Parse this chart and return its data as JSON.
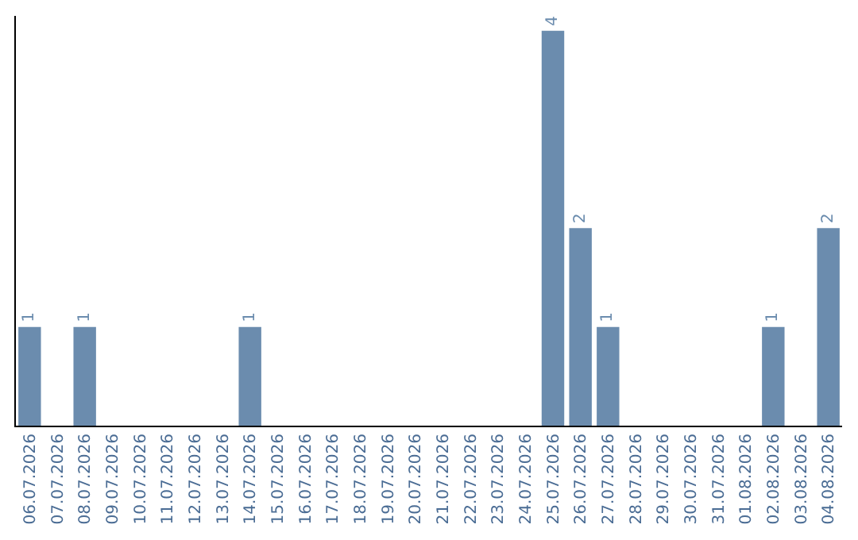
{
  "chart_data": {
    "type": "bar",
    "categories": [
      "06.07.2026",
      "07.07.2026",
      "08.07.2026",
      "09.07.2026",
      "10.07.2026",
      "11.07.2026",
      "12.07.2026",
      "13.07.2026",
      "14.07.2026",
      "15.07.2026",
      "16.07.2026",
      "17.07.2026",
      "18.07.2026",
      "19.07.2026",
      "20.07.2026",
      "21.07.2026",
      "22.07.2026",
      "23.07.2026",
      "24.07.2026",
      "25.07.2026",
      "26.07.2026",
      "27.07.2026",
      "28.07.2026",
      "29.07.2026",
      "30.07.2026",
      "31.07.2026",
      "01.08.2026",
      "02.08.2026",
      "03.08.2026",
      "04.08.2026"
    ],
    "values": [
      1,
      0,
      1,
      0,
      0,
      0,
      0,
      0,
      1,
      0,
      0,
      0,
      0,
      0,
      0,
      0,
      0,
      0,
      0,
      4,
      2,
      1,
      0,
      0,
      0,
      0,
      0,
      1,
      0,
      2
    ],
    "value_labels": [
      "1",
      null,
      "1",
      null,
      null,
      null,
      null,
      null,
      "1",
      null,
      null,
      null,
      null,
      null,
      null,
      null,
      null,
      null,
      null,
      "4",
      "2",
      "1",
      null,
      null,
      null,
      null,
      null,
      "1",
      null,
      "2"
    ],
    "color": "#6b8cae",
    "ylim": [
      0,
      4.15
    ],
    "tick_labels": "x",
    "grid": false,
    "legend": false
  }
}
